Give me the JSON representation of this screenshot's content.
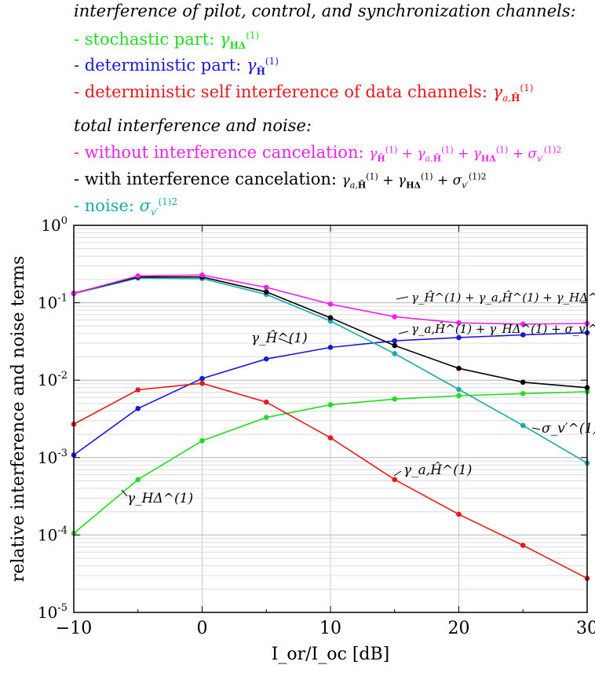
{
  "legend": {
    "heading_1": "interference of pilot, control, and synchronization channels:",
    "items_1": [
      {
        "text": "- stochastic part:",
        "symbol": "γ_HΔ^(1)",
        "color": "#22dd22"
      },
      {
        "text": "- deterministic part:",
        "symbol": "γ_Ĥ^(1)",
        "color": "#1a1ad6"
      },
      {
        "text": "- deterministic self interference of data channels:",
        "symbol": "γ_a,Ĥ^(1)",
        "color": "#e61a1a"
      }
    ],
    "heading_2": "total interference and noise:",
    "items_2": [
      {
        "text": "- without interference cancelation:",
        "symbol": "γ_Ĥ^(1) + γ_a,Ĥ^(1) + γ_HΔ^(1) + σ_v′^(1)2",
        "color": "#ee22ee"
      },
      {
        "text": "- with interference cancelation:",
        "symbol": "γ_a,Ĥ^(1) + γ_HΔ^(1) + σ_v′^(1)2",
        "color": "#000000"
      },
      {
        "text": "- noise:",
        "symbol": "σ_v′^(1)2",
        "color": "#1aaaaa"
      }
    ]
  },
  "chart_data": {
    "type": "line",
    "xlabel": "I_or/I_oc [dB]",
    "ylabel": "relative interference and noise terms",
    "xlim": [
      -10,
      30
    ],
    "ylim": [
      1e-05,
      1
    ],
    "yscale": "log",
    "grid": true,
    "x": [
      -10,
      -5,
      0,
      5,
      10,
      15,
      20,
      25,
      30
    ],
    "x_ticks": [
      "−10",
      "0",
      "10",
      "20",
      "30"
    ],
    "x_tick_values": [
      -10,
      0,
      10,
      20,
      30
    ],
    "y_ticks": [
      "10-5",
      "10-4",
      "10-3",
      "10-2",
      "10-1",
      "100"
    ],
    "series": [
      {
        "key": "stochastic",
        "label": "γ_HΔ^(1)",
        "color": "#22dd22",
        "values": [
          0.000105,
          0.00052,
          0.00165,
          0.0033,
          0.0048,
          0.0057,
          0.0063,
          0.0067,
          0.0071
        ]
      },
      {
        "key": "deterministic",
        "label": "γ_Ĥ^(1)",
        "color": "#1a1ad6",
        "values": [
          0.00108,
          0.0043,
          0.0105,
          0.0188,
          0.0265,
          0.0322,
          0.0355,
          0.0385,
          0.041
        ]
      },
      {
        "key": "selfinterference",
        "label": "γ_a,Ĥ^(1)",
        "color": "#e61a1a",
        "values": [
          0.0027,
          0.0075,
          0.0091,
          0.0052,
          0.0018,
          0.00052,
          0.000185,
          7.35e-05,
          2.75e-05
        ]
      },
      {
        "key": "without_ic",
        "label": "γ_Ĥ^(1) + γ_a,Ĥ^(1) + γ_HΔ^(1) + σ_v′^(1)2",
        "color": "#ee22ee",
        "values": [
          0.132,
          0.222,
          0.228,
          0.158,
          0.096,
          0.066,
          0.055,
          0.053,
          0.054
        ]
      },
      {
        "key": "with_ic",
        "label": "γ_a,Ĥ^(1) + γ_HΔ^(1) + σ_v′^(1)2",
        "color": "#000000",
        "values": [
          0.133,
          0.215,
          0.215,
          0.138,
          0.064,
          0.028,
          0.0142,
          0.0094,
          0.008
        ]
      },
      {
        "key": "noise",
        "label": "σ_v′^(1)2",
        "color": "#1aaaaa",
        "values": [
          0.131,
          0.208,
          0.205,
          0.128,
          0.058,
          0.022,
          0.0076,
          0.0026,
          0.00085
        ]
      }
    ]
  }
}
